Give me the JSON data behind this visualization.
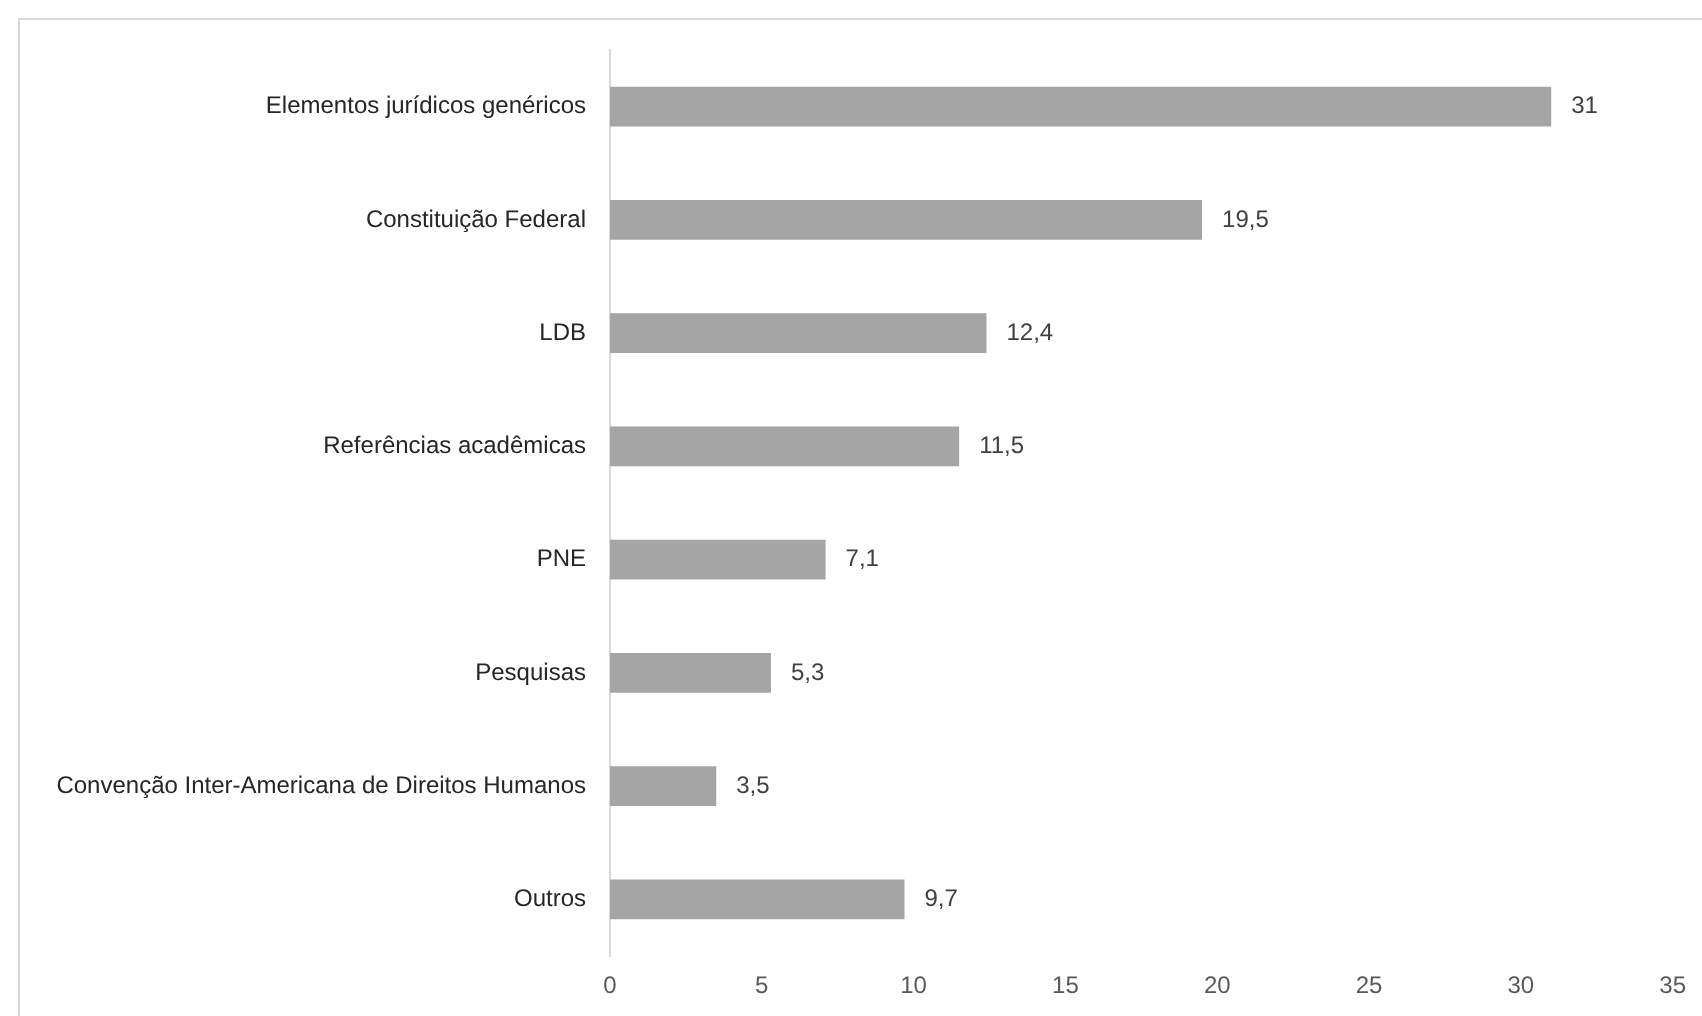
{
  "chart_data": {
    "type": "bar",
    "orientation": "horizontal",
    "categories": [
      "Elementos jurídicos genéricos",
      "Constituição Federal",
      "LDB",
      "Referências acadêmicas",
      "PNE",
      "Pesquisas",
      "Convenção Inter-Americana de Direitos Humanos",
      "Outros"
    ],
    "values": [
      31,
      19.5,
      12.4,
      11.5,
      7.1,
      5.3,
      3.5,
      9.7
    ],
    "value_labels": [
      "31",
      "19,5",
      "12,4",
      "11,5",
      "7,1",
      "5,3",
      "3,5",
      "9,7"
    ],
    "color": "#a5a5a5",
    "xlim": [
      0,
      35
    ],
    "xticks": [
      0,
      5,
      10,
      15,
      20,
      25,
      30,
      35
    ],
    "grid": false,
    "legend": false
  }
}
